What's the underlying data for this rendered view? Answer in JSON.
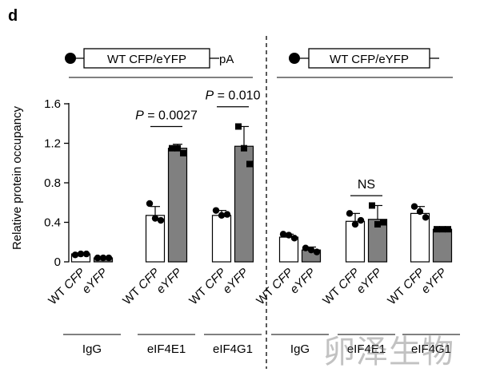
{
  "panel_letter": "d",
  "constructs": [
    {
      "label": "WT CFP/eYFP",
      "suffix": "pA"
    },
    {
      "label": "WT CFP/eYFP",
      "suffix": ""
    }
  ],
  "watermark": "卵泽生物",
  "colors": {
    "WT CFP": "#ffffff",
    "eYFP": "#808080",
    "stroke": "#000000"
  },
  "chart_data": {
    "type": "bar",
    "ylabel": "Relative protein occupancy",
    "ylim": [
      0,
      1.6
    ],
    "yticks": [
      "0",
      "0.4",
      "0.8",
      "1.2",
      "1.6"
    ],
    "bar_labels": [
      "WT CFP",
      "eYFP"
    ],
    "groups": [
      {
        "name": "IgG",
        "side": "left",
        "bars": [
          {
            "label": "WT CFP",
            "value": 0.08,
            "err": 0.01,
            "points": [
              0.07,
              0.08,
              0.08
            ]
          },
          {
            "label": "eYFP",
            "value": 0.04,
            "err": 0.01,
            "points": [
              0.04,
              0.04,
              0.04
            ]
          }
        ]
      },
      {
        "name": "eIF4E1",
        "side": "left",
        "bars": [
          {
            "label": "WT CFP",
            "value": 0.47,
            "err": 0.09,
            "points": [
              0.59,
              0.44,
              0.42
            ]
          },
          {
            "label": "eYFP",
            "value": 1.15,
            "err": 0.04,
            "points": [
              1.15,
              1.15,
              1.1
            ]
          }
        ]
      },
      {
        "name": "eIF4G1",
        "side": "left",
        "bars": [
          {
            "label": "WT CFP",
            "value": 0.47,
            "err": 0.05,
            "points": [
              0.52,
              0.47,
              0.48
            ]
          },
          {
            "label": "eYFP",
            "value": 1.17,
            "err": 0.2,
            "points": [
              1.37,
              1.15,
              0.99
            ]
          }
        ]
      },
      {
        "name": "IgG",
        "side": "right",
        "bars": [
          {
            "label": "WT CFP",
            "value": 0.25,
            "err": 0.03,
            "points": [
              0.28,
              0.27,
              0.24
            ]
          },
          {
            "label": "eYFP",
            "value": 0.12,
            "err": 0.03,
            "points": [
              0.14,
              0.12,
              0.1
            ]
          }
        ]
      },
      {
        "name": "eIF4E1",
        "side": "right",
        "bars": [
          {
            "label": "WT CFP",
            "value": 0.41,
            "err": 0.08,
            "points": [
              0.49,
              0.38,
              0.42
            ]
          },
          {
            "label": "eYFP",
            "value": 0.43,
            "err": 0.14,
            "points": [
              0.57,
              0.38,
              0.4
            ]
          }
        ]
      },
      {
        "name": "eIF4G1",
        "side": "right",
        "bars": [
          {
            "label": "WT CFP",
            "value": 0.49,
            "err": 0.07,
            "points": [
              0.56,
              0.51,
              0.45
            ]
          },
          {
            "label": "eYFP",
            "value": 0.33,
            "err": 0.01,
            "points": [
              0.33,
              0.33,
              0.33
            ]
          }
        ]
      }
    ],
    "annotations": [
      {
        "text": "P = 0.0027",
        "group": 1
      },
      {
        "text": "P = 0.010",
        "group": 2
      },
      {
        "text": "NS",
        "group": 4
      }
    ]
  }
}
